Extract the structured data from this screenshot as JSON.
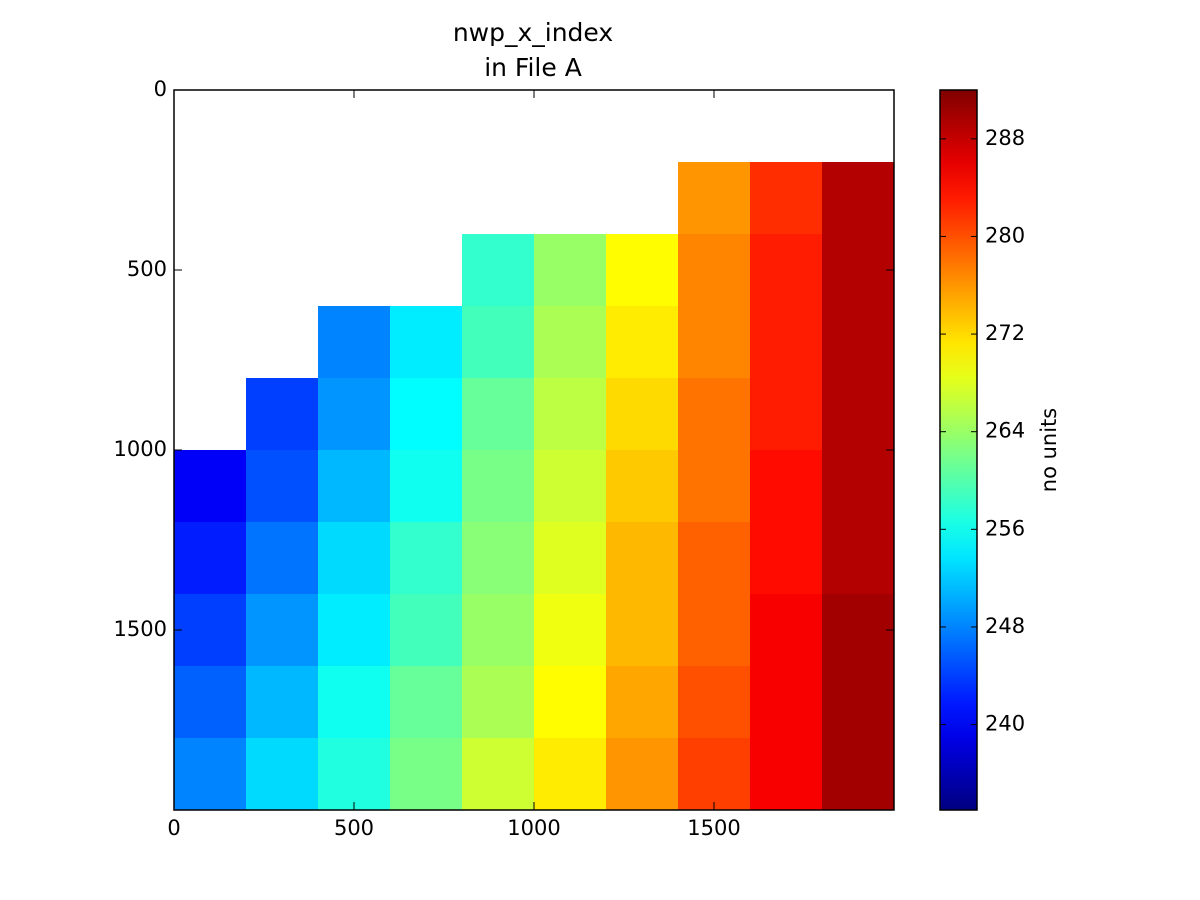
{
  "chart_data": {
    "type": "heatmap",
    "title": "nwp_x_index",
    "subtitle": "in File A",
    "x": [
      100,
      300,
      500,
      700,
      900,
      1100,
      1300,
      1500,
      1700,
      1900
    ],
    "y": [
      100,
      300,
      500,
      700,
      900,
      1100,
      1300,
      1500,
      1700,
      1900
    ],
    "z": [
      [
        null,
        null,
        null,
        null,
        null,
        null,
        null,
        null,
        null,
        null
      ],
      [
        null,
        null,
        null,
        null,
        null,
        null,
        null,
        276,
        282,
        289
      ],
      [
        null,
        null,
        null,
        null,
        258,
        264,
        270,
        277,
        283,
        289
      ],
      [
        null,
        null,
        248,
        254,
        259,
        265,
        271,
        277,
        283,
        289
      ],
      [
        null,
        244,
        249,
        255,
        261,
        266,
        272,
        278,
        283,
        289
      ],
      [
        240,
        245,
        251,
        256,
        262,
        267,
        273,
        278,
        284,
        289
      ],
      [
        242,
        247,
        253,
        258,
        263,
        268,
        274,
        279,
        284,
        289
      ],
      [
        244,
        249,
        254,
        259,
        264,
        269,
        274,
        279,
        285,
        290
      ],
      [
        246,
        251,
        256,
        261,
        265,
        270,
        275,
        280,
        285,
        290
      ],
      [
        248,
        253,
        257,
        262,
        267,
        271,
        276,
        281,
        285,
        290
      ]
    ],
    "xlim": [
      0,
      2000
    ],
    "xticks": [
      0,
      500,
      1000,
      1500
    ],
    "ylim": [
      2000,
      0
    ],
    "yticks": [
      0,
      500,
      1000,
      1500
    ],
    "colormap": "jet",
    "clim": [
      233,
      292
    ],
    "cticks": [
      240,
      248,
      256,
      264,
      272,
      280,
      288
    ],
    "colorbar_label": "no units"
  }
}
